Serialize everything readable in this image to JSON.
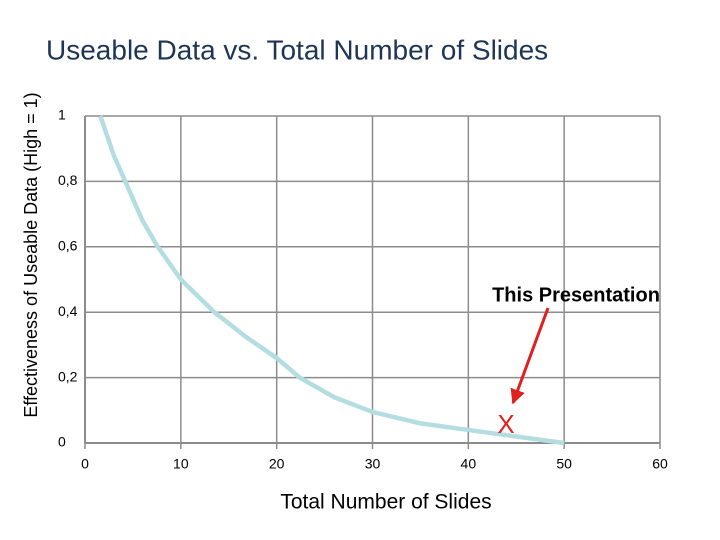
{
  "chart_data": {
    "type": "line",
    "title": "Useable Data vs. Total Number of Slides",
    "x_label": "Total Number of Slides",
    "y_label": "Effectiveness of Useable Data (High = 1)",
    "series": [
      {
        "name": "Useable Data",
        "color": "#b4dde1",
        "x": [
          1.6,
          3,
          4.2,
          6,
          7.6,
          10,
          13.5,
          17,
          20,
          22.4,
          26,
          30,
          35,
          40,
          45,
          50
        ],
        "values": [
          1,
          0.88,
          0.8,
          0.68,
          0.6,
          0.5,
          0.4,
          0.32,
          0.26,
          0.2,
          0.14,
          0.095,
          0.06,
          0.04,
          0.02,
          0
        ]
      }
    ],
    "xlim": [
      0,
      60
    ],
    "xticks": [
      0,
      10,
      20,
      30,
      40,
      50,
      60
    ],
    "ylim": [
      0,
      1
    ],
    "yticks": [
      0,
      {
        "value": 0.2,
        "label": "0,2"
      },
      {
        "value": 0.4,
        "label": "0,4"
      },
      {
        "value": 0.6,
        "label": "0,6"
      },
      {
        "value": 0.8,
        "label": "0,8"
      },
      1
    ],
    "grid": true,
    "annotations": [
      {
        "text": "This Presentation"
      },
      {
        "text": "X"
      }
    ]
  }
}
